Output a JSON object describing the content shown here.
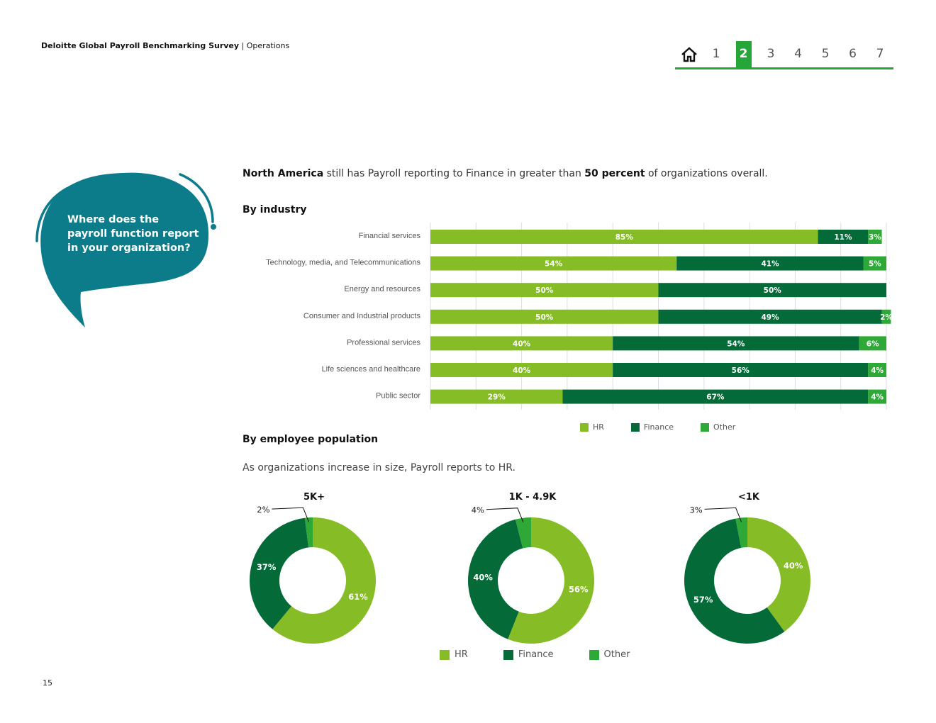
{
  "header": {
    "title_bold": "Deloitte Global Payroll Benchmarking Survey",
    "title_sep": " | ",
    "section": "Operations"
  },
  "nav": {
    "home_icon": "home-icon",
    "pages": [
      "1",
      "2",
      "3",
      "4",
      "5",
      "6",
      "7"
    ],
    "active_page": "2",
    "accent": "#26a639"
  },
  "bubble": {
    "question": "Where does the payroll function report in your organization?",
    "color": "#0c7c8a"
  },
  "lead": {
    "bold1": "North America",
    "text1": " still has Payroll reporting to Finance in greater than ",
    "bold2": "50 percent",
    "text2": " of organizations overall."
  },
  "sections": {
    "industry": "By industry",
    "population": "By employee population",
    "population_note": "As organizations increase in size, Payroll reports to HR."
  },
  "colors": {
    "HR": "#86bc25",
    "Finance": "#046a38",
    "Other": "#2ea836"
  },
  "chart_data": [
    {
      "type": "bar",
      "orientation": "horizontal",
      "stacked": true,
      "title": "By industry",
      "categories": [
        "Financial services",
        "Technology, media, and Telecommunications",
        "Energy and resources",
        "Consumer and Industrial products",
        "Professional services",
        "Life sciences and healthcare",
        "Public sector"
      ],
      "series": [
        {
          "name": "HR",
          "values": [
            85,
            54,
            50,
            50,
            40,
            40,
            29
          ]
        },
        {
          "name": "Finance",
          "values": [
            11,
            41,
            50,
            49,
            54,
            56,
            67
          ]
        },
        {
          "name": "Other",
          "values": [
            3,
            5,
            0,
            2,
            6,
            4,
            4
          ]
        }
      ],
      "xlim": [
        0,
        100
      ],
      "grid": true,
      "legend": "bottom"
    },
    {
      "type": "pie",
      "donut": true,
      "title": "5K+",
      "labels": [
        "HR",
        "Finance",
        "Other"
      ],
      "values": [
        61,
        37,
        2
      ]
    },
    {
      "type": "pie",
      "donut": true,
      "title": "1K - 4.9K",
      "labels": [
        "HR",
        "Finance",
        "Other"
      ],
      "values": [
        56,
        40,
        4
      ]
    },
    {
      "type": "pie",
      "donut": true,
      "title": "<1K",
      "labels": [
        "HR",
        "Finance",
        "Other"
      ],
      "values": [
        40,
        57,
        3
      ]
    }
  ],
  "legend": [
    "HR",
    "Finance",
    "Other"
  ],
  "page_number": "15"
}
